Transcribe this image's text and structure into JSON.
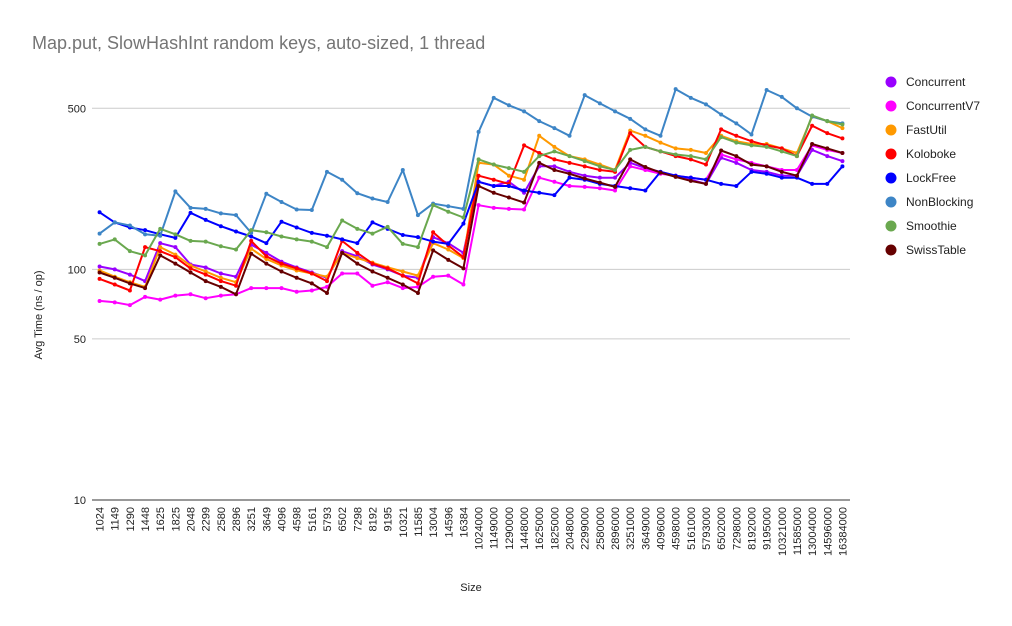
{
  "chart_data": {
    "type": "line",
    "title": "Map.put, SlowHashInt random keys, auto-sized, 1 thread",
    "xlabel": "Size",
    "ylabel": "Avg Time (ns / op)",
    "yscale": "log",
    "ylim": [
      10,
      650
    ],
    "yticks": [
      10,
      50,
      100,
      500
    ],
    "grid": true,
    "legend_position": "right",
    "categories": [
      "1024",
      "1149",
      "1290",
      "1448",
      "1625",
      "1825",
      "2048",
      "2299",
      "2580",
      "2896",
      "3251",
      "3649",
      "4096",
      "4598",
      "5161",
      "5793",
      "6502",
      "7298",
      "8192",
      "9195",
      "10321",
      "11585",
      "13004",
      "14596",
      "16384",
      "1024000",
      "1149000",
      "1290000",
      "1448000",
      "1625000",
      "1825000",
      "2048000",
      "2299000",
      "2580000",
      "2896000",
      "3251000",
      "3649000",
      "4096000",
      "4598000",
      "5161000",
      "5793000",
      "6502000",
      "7298000",
      "8192000",
      "9195000",
      "10321000",
      "11585000",
      "13004000",
      "14596000",
      "16384000"
    ],
    "series": [
      {
        "name": "Concurrent",
        "color": "#9900ff",
        "values": [
          103,
          100,
          95,
          89,
          130,
          125,
          105,
          102,
          96,
          93,
          128,
          118,
          108,
          102,
          97,
          92,
          120,
          114,
          105,
          100,
          94,
          92,
          138,
          130,
          118,
          240,
          230,
          240,
          215,
          280,
          280,
          265,
          255,
          250,
          250,
          290,
          275,
          265,
          255,
          245,
          235,
          305,
          290,
          270,
          265,
          255,
          255,
          330,
          310,
          295
        ]
      },
      {
        "name": "ConcurrentV7",
        "color": "#ff00ff",
        "values": [
          73,
          72,
          70,
          76,
          74,
          77,
          78,
          75,
          77,
          78,
          83,
          83,
          83,
          80,
          81,
          84,
          96,
          96,
          85,
          88,
          83,
          84,
          93,
          94,
          86,
          190,
          185,
          183,
          182,
          250,
          240,
          230,
          228,
          225,
          220,
          280,
          270,
          260,
          255,
          250,
          245,
          315,
          300,
          290,
          280,
          270,
          270,
          345,
          330,
          320
        ]
      },
      {
        "name": "FastUtil",
        "color": "#ff9900",
        "values": [
          99,
          93,
          88,
          84,
          125,
          116,
          104,
          98,
          92,
          88,
          123,
          111,
          104,
          99,
          96,
          93,
          118,
          112,
          107,
          102,
          98,
          94,
          130,
          122,
          112,
          290,
          285,
          255,
          245,
          380,
          340,
          310,
          300,
          285,
          270,
          400,
          380,
          355,
          335,
          330,
          320,
          380,
          360,
          350,
          350,
          335,
          320,
          460,
          440,
          410
        ]
      },
      {
        "name": "Koloboke",
        "color": "#ff0000",
        "values": [
          91,
          86,
          81,
          125,
          120,
          113,
          101,
          95,
          89,
          85,
          133,
          114,
          106,
          101,
          96,
          89,
          133,
          118,
          106,
          101,
          94,
          87,
          145,
          127,
          113,
          255,
          245,
          235,
          345,
          320,
          300,
          290,
          280,
          270,
          265,
          390,
          340,
          325,
          310,
          300,
          285,
          405,
          380,
          360,
          345,
          335,
          310,
          420,
          390,
          370
        ]
      },
      {
        "name": "LockFree",
        "color": "#0000ff",
        "values": [
          177,
          160,
          152,
          148,
          142,
          137,
          176,
          164,
          154,
          146,
          139,
          130,
          161,
          152,
          144,
          140,
          135,
          130,
          160,
          150,
          141,
          138,
          132,
          129,
          158,
          240,
          230,
          230,
          220,
          215,
          210,
          250,
          245,
          235,
          230,
          225,
          220,
          265,
          255,
          250,
          245,
          235,
          230,
          265,
          260,
          250,
          250,
          235,
          235,
          280
        ]
      },
      {
        "name": "NonBlocking",
        "color": "#3d85c6",
        "values": [
          143,
          160,
          155,
          142,
          140,
          218,
          185,
          183,
          175,
          172,
          144,
          213,
          196,
          182,
          181,
          265,
          245,
          214,
          203,
          196,
          270,
          172,
          193,
          188,
          183,
          395,
          555,
          515,
          485,
          440,
          410,
          380,
          570,
          525,
          485,
          450,
          405,
          380,
          605,
          555,
          520,
          470,
          430,
          385,
          600,
          560,
          500,
          460,
          440,
          430
        ]
      },
      {
        "name": "Smoothie",
        "color": "#6aa84f",
        "values": [
          129,
          135,
          120,
          115,
          150,
          142,
          133,
          132,
          126,
          122,
          148,
          145,
          139,
          135,
          132,
          125,
          163,
          150,
          143,
          153,
          129,
          125,
          190,
          178,
          168,
          300,
          285,
          275,
          265,
          310,
          325,
          310,
          295,
          280,
          270,
          330,
          340,
          325,
          315,
          310,
          300,
          375,
          355,
          345,
          340,
          325,
          310,
          465,
          440,
          425
        ]
      },
      {
        "name": "SwissTable",
        "color": "#660000",
        "values": [
          97,
          92,
          87,
          83,
          115,
          106,
          97,
          89,
          84,
          78,
          117,
          106,
          98,
          92,
          87,
          79,
          118,
          106,
          98,
          92,
          86,
          79,
          121,
          110,
          101,
          230,
          215,
          205,
          195,
          290,
          270,
          260,
          248,
          238,
          228,
          300,
          278,
          263,
          252,
          242,
          235,
          328,
          310,
          285,
          280,
          265,
          255,
          350,
          335,
          320
        ]
      }
    ]
  }
}
